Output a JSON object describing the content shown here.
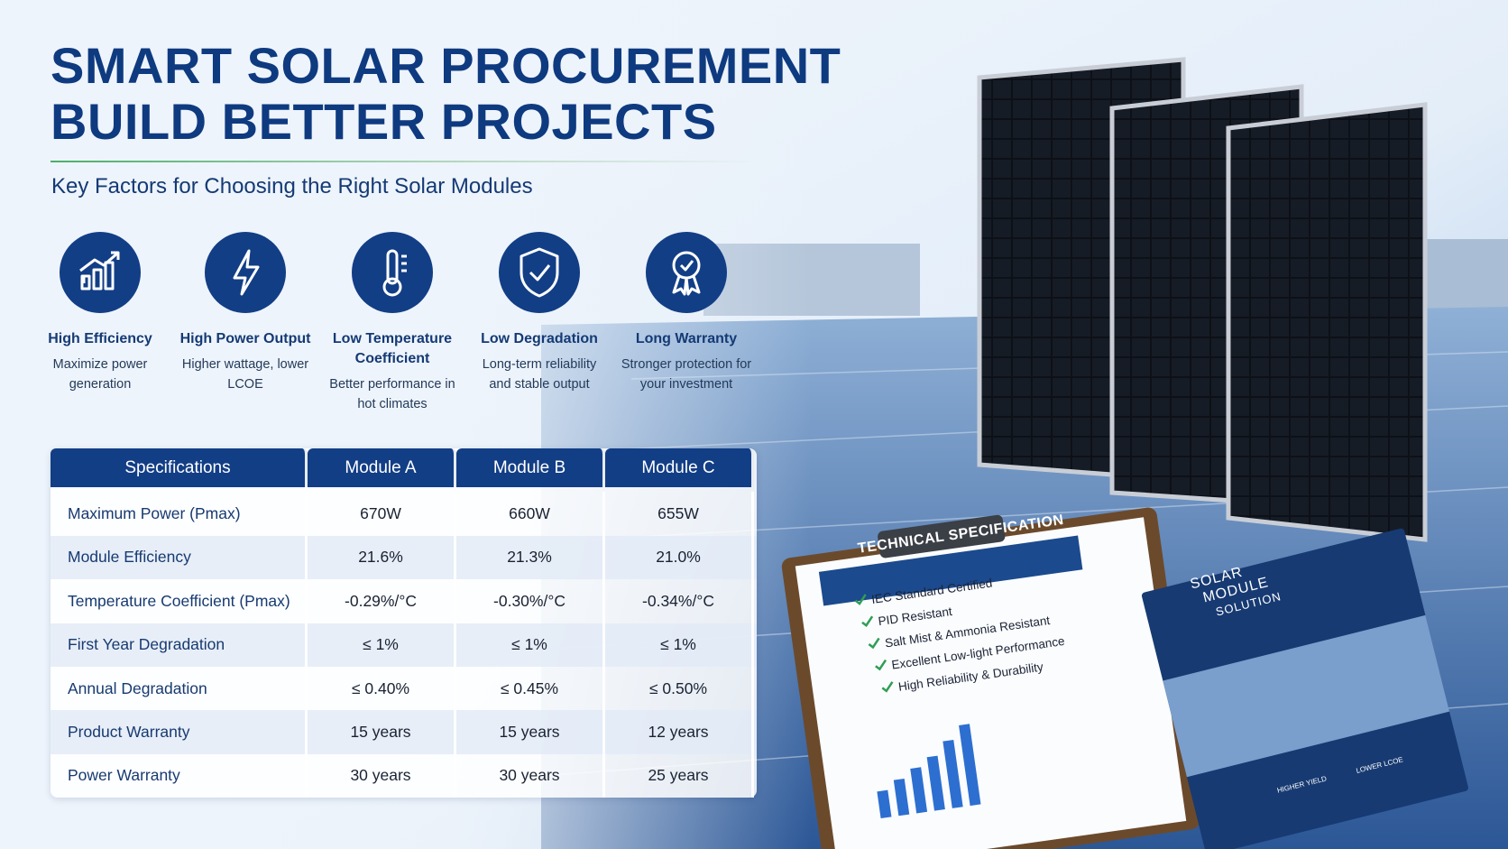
{
  "header": {
    "title_line1": "SMART SOLAR PROCUREMENT",
    "title_line2": "BUILD BETTER PROJECTS",
    "subtitle": "Key Factors for Choosing the Right Solar Modules"
  },
  "features": [
    {
      "title": "High Efficiency",
      "desc": "Maximize power generation"
    },
    {
      "title": "High Power Output",
      "desc": "Higher wattage, lower LCOE"
    },
    {
      "title": "Low Temperature Coefficient",
      "desc": "Better performance in hot climates"
    },
    {
      "title": "Low Degradation",
      "desc": "Long-term reliability and stable output"
    },
    {
      "title": "Long Warranty",
      "desc": "Stronger protection for your investment"
    }
  ],
  "table": {
    "header": [
      "Specifications",
      "Module A",
      "Module B",
      "Module C"
    ],
    "rows": [
      [
        "Maximum Power (Pmax)",
        "670W",
        "660W",
        "655W"
      ],
      [
        "Module Efficiency",
        "21.6%",
        "21.3%",
        "21.0%"
      ],
      [
        "Temperature Coefficient (Pmax)",
        "-0.29%/°C",
        "-0.30%/°C",
        "-0.34%/°C"
      ],
      [
        "First Year Degradation",
        "≤ 1%",
        "≤ 1%",
        "≤ 1%"
      ],
      [
        "Annual Degradation",
        "≤ 0.40%",
        "≤ 0.45%",
        "≤ 0.50%"
      ],
      [
        "Product Warranty",
        "15 years",
        "15 years",
        "12 years"
      ],
      [
        "Power Warranty",
        "30 years",
        "30 years",
        "25 years"
      ]
    ]
  },
  "clipboard": {
    "title": "TECHNICAL SPECIFICATION",
    "items": [
      "IEC Standard Certified",
      "PID Resistant",
      "Salt Mist & Ammonia Resistant",
      "Excellent Low-light Performance",
      "High Reliability & Durability"
    ]
  },
  "brochure": {
    "title_line1": "SOLAR",
    "title_line2": "MODULE",
    "title_line3": "SOLUTION",
    "icons": [
      "HIGHER YIELD",
      "LOWER LCOE"
    ]
  }
}
